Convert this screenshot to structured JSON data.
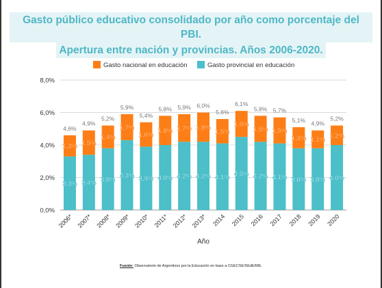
{
  "title_lines": [
    "Gasto público educativo consolidado por año como porcentaje del PBI.",
    "Apertura entre nación y provincias. Años 2006-2020."
  ],
  "source": {
    "label": "Fuente:",
    "text": "Observatorio de Argentinos por la Educación en base a CGECSE/SEdE/ME."
  },
  "colors": {
    "national": "#fd7e16",
    "provincial": "#4cbfc9",
    "title": "#4fb7c5",
    "title_bg": "#e4f4f6"
  },
  "chart_data": {
    "type": "bar",
    "stacked": true,
    "xlabel": "Año",
    "ylabel": "",
    "ylim": [
      0,
      8
    ],
    "yticks": [
      "0,0%",
      "2,0%",
      "4,0%",
      "6,0%",
      "8,0%"
    ],
    "grid": true,
    "legend_position": "top",
    "categories": [
      "2006*",
      "2007*",
      "2008*",
      "2009*",
      "2010*",
      "2011*",
      "2012*",
      "2013*",
      "2014",
      "2015",
      "2016",
      "2017",
      "2018",
      "2019",
      "2020"
    ],
    "series": [
      {
        "name": "Gasto provincial en educación",
        "color": "#4cbfc9",
        "values": [
          3.3,
          3.4,
          3.8,
          4.3,
          3.9,
          4.0,
          4.2,
          4.2,
          4.1,
          4.5,
          4.2,
          4.1,
          3.8,
          3.8,
          4.0
        ],
        "labels": [
          "3,3%",
          "3,4%",
          "3,8%",
          "4,3%",
          "3,9%",
          "4,0%",
          "4,2%",
          "4,2%",
          "4,1%",
          "4,5%",
          "4,2%",
          "4,1%",
          "3,8%",
          "3,8%",
          "4,0%"
        ]
      },
      {
        "name": "Gasto nacional en educación",
        "color": "#fd7e16",
        "values": [
          1.3,
          1.5,
          1.4,
          1.7,
          1.6,
          1.8,
          1.7,
          1.8,
          1.5,
          1.6,
          1.5,
          1.5,
          1.3,
          1.1,
          1.2
        ],
        "labels": [
          "1,3%",
          "1,5%",
          "1,4%",
          "1,7%",
          "1,6%",
          "1,8%",
          "1,7%",
          "1,8%",
          "1,5%",
          "1,6%",
          "1,5%",
          "1,5%",
          "1,3%",
          "1,1%",
          "1,2%"
        ]
      }
    ],
    "totals": [
      "4,6%",
      "4,9%",
      "5,2%",
      "5,9%",
      "5,4%",
      "5,8%",
      "5,9%",
      "6,0%",
      "5,6%",
      "6,1%",
      "5,8%",
      "5,7%",
      "5,1%",
      "4,9%",
      "5,2%"
    ],
    "total_values": [
      4.6,
      4.9,
      5.2,
      5.9,
      5.4,
      5.8,
      5.9,
      6.0,
      5.6,
      6.1,
      5.8,
      5.7,
      5.1,
      4.9,
      5.2
    ],
    "legend": [
      "Gasto nacional en educación",
      "Gasto provincial en educación"
    ]
  }
}
